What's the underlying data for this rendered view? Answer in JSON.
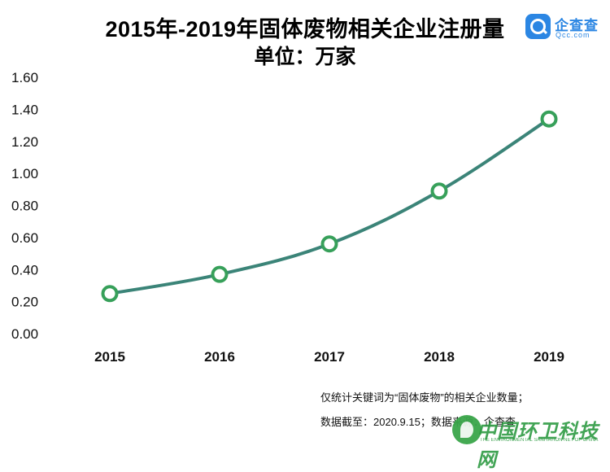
{
  "title_line1": "2015年-2019年固体废物相关企业注册量",
  "title_line2": "单位：万家",
  "logo": {
    "name": "企查查",
    "domain": "Qcc.com",
    "icon": "magnifier-logo-icon",
    "color": "#2b86e3"
  },
  "notes": {
    "line1": "仅统计关键词为“固体废物”的相关企业数量；",
    "line2": "数据截至：2020.9.15；数据来源：企查查"
  },
  "watermark": {
    "text": "中国环卫科技网",
    "subtext": "THE ENVIRONMENTAL SANITATION NET OF CHINA",
    "color": "#2e9b43"
  },
  "chart_data": {
    "type": "line",
    "categories": [
      "2015",
      "2016",
      "2017",
      "2018",
      "2019"
    ],
    "values": [
      0.25,
      0.37,
      0.56,
      0.89,
      1.34
    ],
    "yticks": [
      "0.00",
      "0.20",
      "0.40",
      "0.60",
      "0.80",
      "1.00",
      "1.20",
      "1.40",
      "1.60"
    ],
    "ylim": [
      0,
      1.6
    ],
    "grid": false,
    "legend": "none",
    "line_color": "#3b8478",
    "marker_color": "#37a05a"
  }
}
